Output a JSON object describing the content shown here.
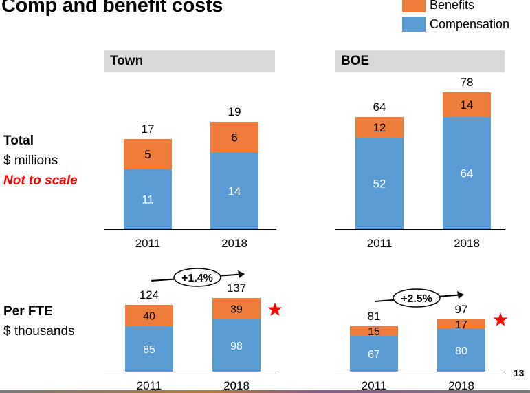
{
  "title": "Comp and benefit costs",
  "legend": [
    {
      "label": "Benefits",
      "color": "#ee7d3c"
    },
    {
      "label": "Compensation",
      "color": "#5b9bd5"
    }
  ],
  "row_labels": {
    "total": {
      "line1": "Total",
      "line2": "$ millions",
      "note": "Not to scale"
    },
    "per_fte": {
      "line1": "Per FTE",
      "line2": "$ thousands"
    }
  },
  "panel_headers": {
    "town": "Town",
    "boe": "BOE"
  },
  "page_number": "13",
  "chart_data": [
    {
      "type": "bar",
      "stacked": true,
      "panel": "Town",
      "row": "Total",
      "categories": [
        "2011",
        "2018"
      ],
      "series": [
        {
          "name": "Compensation",
          "values": [
            11,
            14
          ],
          "color": "#5b9bd5"
        },
        {
          "name": "Benefits",
          "values": [
            5,
            6
          ],
          "color": "#ee7d3c"
        }
      ],
      "totals": [
        "17",
        "19"
      ]
    },
    {
      "type": "bar",
      "stacked": true,
      "panel": "BOE",
      "row": "Total",
      "categories": [
        "2011",
        "2018"
      ],
      "series": [
        {
          "name": "Compensation",
          "values": [
            52,
            64
          ],
          "color": "#5b9bd5"
        },
        {
          "name": "Benefits",
          "values": [
            12,
            14
          ],
          "color": "#ee7d3c"
        }
      ],
      "totals": [
        "64",
        "78"
      ]
    },
    {
      "type": "bar",
      "stacked": true,
      "panel": "Town",
      "row": "Per FTE",
      "categories": [
        "2011",
        "2018"
      ],
      "series": [
        {
          "name": "Compensation",
          "values": [
            85,
            98
          ],
          "color": "#5b9bd5"
        },
        {
          "name": "Benefits",
          "values": [
            40,
            39
          ],
          "color": "#ee7d3c"
        }
      ],
      "totals": [
        "124",
        "137"
      ],
      "growth_label": "+1.4%",
      "star": true
    },
    {
      "type": "bar",
      "stacked": true,
      "panel": "BOE",
      "row": "Per FTE",
      "categories": [
        "2011",
        "2018"
      ],
      "series": [
        {
          "name": "Compensation",
          "values": [
            67,
            80
          ],
          "color": "#5b9bd5"
        },
        {
          "name": "Benefits",
          "values": [
            15,
            17
          ],
          "color": "#ee7d3c"
        }
      ],
      "totals": [
        "81",
        "97"
      ],
      "growth_label": "+2.5%",
      "star": true
    }
  ],
  "colors": {
    "compensation": "#5b9bd5",
    "benefits": "#ee7d3c",
    "star": "#ff0000",
    "axis": "#000000"
  }
}
